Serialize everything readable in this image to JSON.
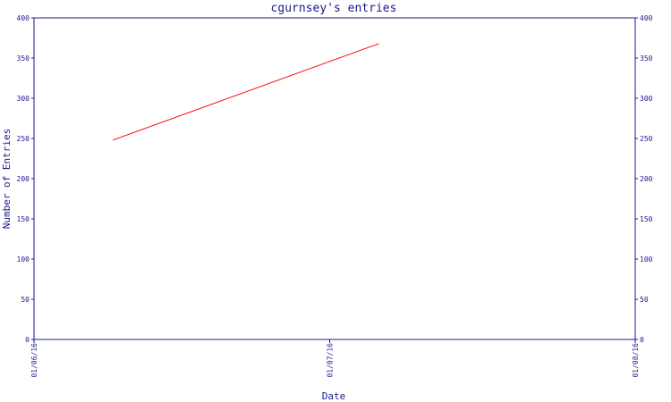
{
  "chart_data": {
    "type": "line",
    "title": "cgurnsey's entries",
    "xlabel": "Date",
    "ylabel": "Number of Entries",
    "x_tick_labels": [
      "01/06/16",
      "01/07/16",
      "01/08/16"
    ],
    "x_tick_dates": [
      "2016-06-01",
      "2016-07-01",
      "2016-08-01"
    ],
    "y_ticks": [
      0,
      50,
      100,
      150,
      200,
      250,
      300,
      350,
      400
    ],
    "ylim": [
      0,
      400
    ],
    "xlim": [
      "2016-06-01",
      "2016-08-01"
    ],
    "right_axis_mirrored": true,
    "grid": false,
    "series": [
      {
        "color": "#ff0000",
        "points": [
          {
            "x": "2016-06-09",
            "y": 248
          },
          {
            "x": "2016-07-06",
            "y": 368
          }
        ]
      }
    ]
  }
}
